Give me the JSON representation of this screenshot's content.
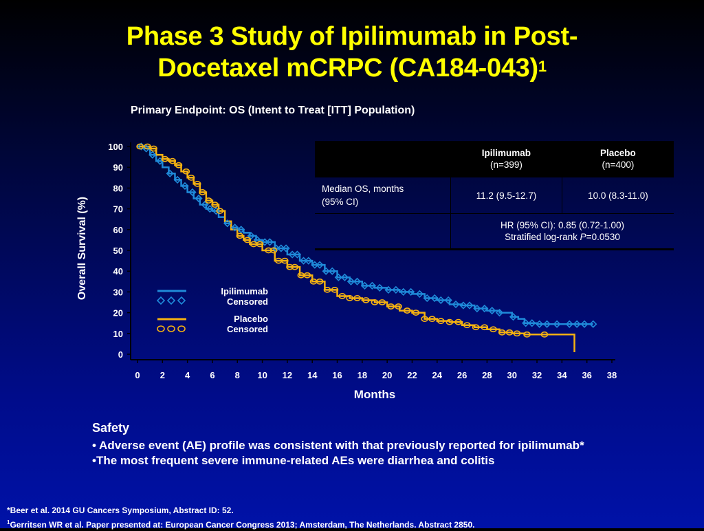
{
  "slide": {
    "title_line1": "Phase 3 Study of Ipilimumab in Post-",
    "title_line2": "Docetaxel mCRPC (CA184-043)",
    "title_sup": "1",
    "subtitle": "Primary Endpoint: OS (Intent to Treat [ITT] Population)"
  },
  "table": {
    "col1_header": "Ipilimumab",
    "col1_sub": "(n=399)",
    "col2_header": "Placebo",
    "col2_sub": "(n=400)",
    "row1_label_line1": "Median OS, months",
    "row1_label_line2": "(95% CI)",
    "row1_col1": "11.2 (9.5-12.7)",
    "row1_col2": "10.0 (8.3-11.0)",
    "row2_line1": "HR (95% CI): 0.85 (0.72-1.00)",
    "row2_line2_prefix": "Stratified log-rank ",
    "row2_line2_p": "P",
    "row2_line2_suffix": "=0.0530"
  },
  "legend": {
    "ipi_line": "Ipilimumab",
    "ipi_censored": "Censored",
    "pbo_line": "Placebo",
    "pbo_censored": "Censored"
  },
  "safety": {
    "heading": "Safety",
    "bullet1": "• Adverse event (AE) profile was consistent with that previously reported for ipilimumab*",
    "bullet2": "•The most frequent severe immune-related AEs were diarrhea and colitis"
  },
  "footnotes": {
    "note1": "*Beer et al. 2014 GU Cancers Symposium, Abstract ID: 52.",
    "note2_sup": "1",
    "note2": "Gerritsen WR et al. Paper presented at: European Cancer Congress 2013; Amsterdam, The Netherlands. Abstract 2850."
  },
  "colors": {
    "title": "#ffff00",
    "ipilimumab": "#1f8ad9",
    "placebo": "#f5b211",
    "axis": "#000000",
    "background_top": "#000000",
    "background_bottom": "#0012a8"
  },
  "chart_data": {
    "type": "line",
    "title": "Primary Endpoint: OS (Intent to Treat [ITT] Population)",
    "xlabel": "Months",
    "ylabel": "Overall Survival (%)",
    "xlim": [
      0,
      38
    ],
    "ylim": [
      0,
      100
    ],
    "xticks": [
      0,
      2,
      4,
      6,
      8,
      10,
      12,
      14,
      16,
      18,
      20,
      22,
      24,
      26,
      28,
      30,
      32,
      34,
      36,
      38
    ],
    "yticks": [
      0,
      10,
      20,
      30,
      40,
      50,
      60,
      70,
      80,
      90,
      100
    ],
    "grid": false,
    "legend_position": "lower-left",
    "series": [
      {
        "name": "Ipilimumab",
        "color": "#1f8ad9",
        "points": [
          [
            0,
            100
          ],
          [
            0.5,
            99
          ],
          [
            1,
            96
          ],
          [
            1.5,
            93
          ],
          [
            2,
            90
          ],
          [
            2.5,
            87
          ],
          [
            3,
            84
          ],
          [
            3.5,
            81
          ],
          [
            4,
            78
          ],
          [
            4.5,
            75
          ],
          [
            5,
            72
          ],
          [
            5.5,
            70
          ],
          [
            6,
            69
          ],
          [
            6.5,
            66
          ],
          [
            7,
            63
          ],
          [
            7.5,
            61
          ],
          [
            8,
            60
          ],
          [
            8.5,
            58.5
          ],
          [
            9,
            57
          ],
          [
            9.5,
            55
          ],
          [
            10,
            54
          ],
          [
            11,
            51
          ],
          [
            12,
            48
          ],
          [
            13,
            45
          ],
          [
            14,
            43
          ],
          [
            15,
            40
          ],
          [
            16,
            37
          ],
          [
            17,
            35
          ],
          [
            18,
            33
          ],
          [
            19,
            32
          ],
          [
            20,
            31
          ],
          [
            21,
            30
          ],
          [
            22,
            29
          ],
          [
            23,
            27
          ],
          [
            24,
            26
          ],
          [
            25,
            24
          ],
          [
            26,
            23.5
          ],
          [
            27,
            22
          ],
          [
            28,
            21
          ],
          [
            29,
            20
          ],
          [
            30,
            18
          ],
          [
            30.5,
            17
          ],
          [
            31,
            15
          ],
          [
            32,
            14.5
          ],
          [
            33,
            14.5
          ],
          [
            34,
            14.5
          ],
          [
            35,
            14.5
          ],
          [
            36,
            14.5
          ],
          [
            36.5,
            14.5
          ]
        ],
        "censored_x": [
          0.3,
          0.7,
          1.2,
          1.8,
          2.6,
          3.2,
          3.8,
          4.4,
          4.9,
          5.4,
          5.8,
          6.3,
          7.2,
          7.8,
          8.3,
          9.1,
          9.6,
          10.2,
          10.6,
          11.1,
          11.5,
          11.9,
          12.4,
          12.8,
          13.3,
          13.7,
          14.2,
          14.6,
          15.1,
          15.6,
          16.1,
          16.6,
          17.1,
          17.6,
          18.2,
          18.8,
          19.4,
          20.1,
          20.7,
          21.3,
          21.9,
          22.6,
          23.2,
          23.8,
          24.3,
          24.9,
          25.5,
          26.1,
          26.6,
          27.2,
          27.8,
          28.4,
          29.0,
          30.1,
          31.1,
          31.6,
          32.2,
          32.8,
          33.6,
          34.6,
          35.2,
          35.8,
          36.5
        ]
      },
      {
        "name": "Placebo",
        "color": "#f5b211",
        "points": [
          [
            0,
            100
          ],
          [
            1,
            99
          ],
          [
            1.5,
            96
          ],
          [
            2,
            94
          ],
          [
            2.5,
            93
          ],
          [
            3,
            91
          ],
          [
            3.5,
            88
          ],
          [
            4,
            85
          ],
          [
            4.5,
            82
          ],
          [
            5,
            78
          ],
          [
            5.5,
            74
          ],
          [
            6,
            72
          ],
          [
            6.5,
            69
          ],
          [
            7,
            64
          ],
          [
            7.5,
            60
          ],
          [
            8,
            57
          ],
          [
            8.5,
            55
          ],
          [
            9,
            53
          ],
          [
            10,
            50
          ],
          [
            11,
            45
          ],
          [
            12,
            42
          ],
          [
            13,
            38
          ],
          [
            14,
            35
          ],
          [
            15,
            31
          ],
          [
            16,
            28
          ],
          [
            17,
            27
          ],
          [
            18,
            26
          ],
          [
            19,
            25
          ],
          [
            20,
            23
          ],
          [
            21,
            21
          ],
          [
            22,
            20
          ],
          [
            23,
            17
          ],
          [
            24,
            16
          ],
          [
            25,
            15.5
          ],
          [
            26,
            14
          ],
          [
            27,
            13
          ],
          [
            28,
            12
          ],
          [
            29,
            10.5
          ],
          [
            30,
            10
          ],
          [
            31,
            9.5
          ],
          [
            32,
            9.5
          ],
          [
            33,
            9.5
          ],
          [
            34,
            9.5
          ],
          [
            35,
            9.5
          ],
          [
            35,
            1
          ]
        ],
        "censored_x": [
          0.2,
          0.8,
          1.3,
          2.2,
          2.8,
          3.3,
          3.9,
          4.3,
          4.8,
          5.2,
          5.7,
          6.2,
          6.6,
          8.2,
          8.8,
          9.3,
          9.8,
          10.5,
          10.9,
          11.3,
          11.8,
          12.2,
          12.6,
          13.1,
          13.6,
          14.1,
          14.6,
          15.2,
          15.8,
          16.4,
          17.0,
          17.6,
          18.3,
          19.0,
          19.6,
          20.3,
          20.9,
          21.6,
          22.3,
          23.0,
          23.6,
          24.3,
          25.0,
          25.7,
          26.4,
          27.1,
          27.8,
          28.5,
          29.2,
          29.8,
          30.4,
          31.2,
          32.6
        ]
      }
    ]
  }
}
